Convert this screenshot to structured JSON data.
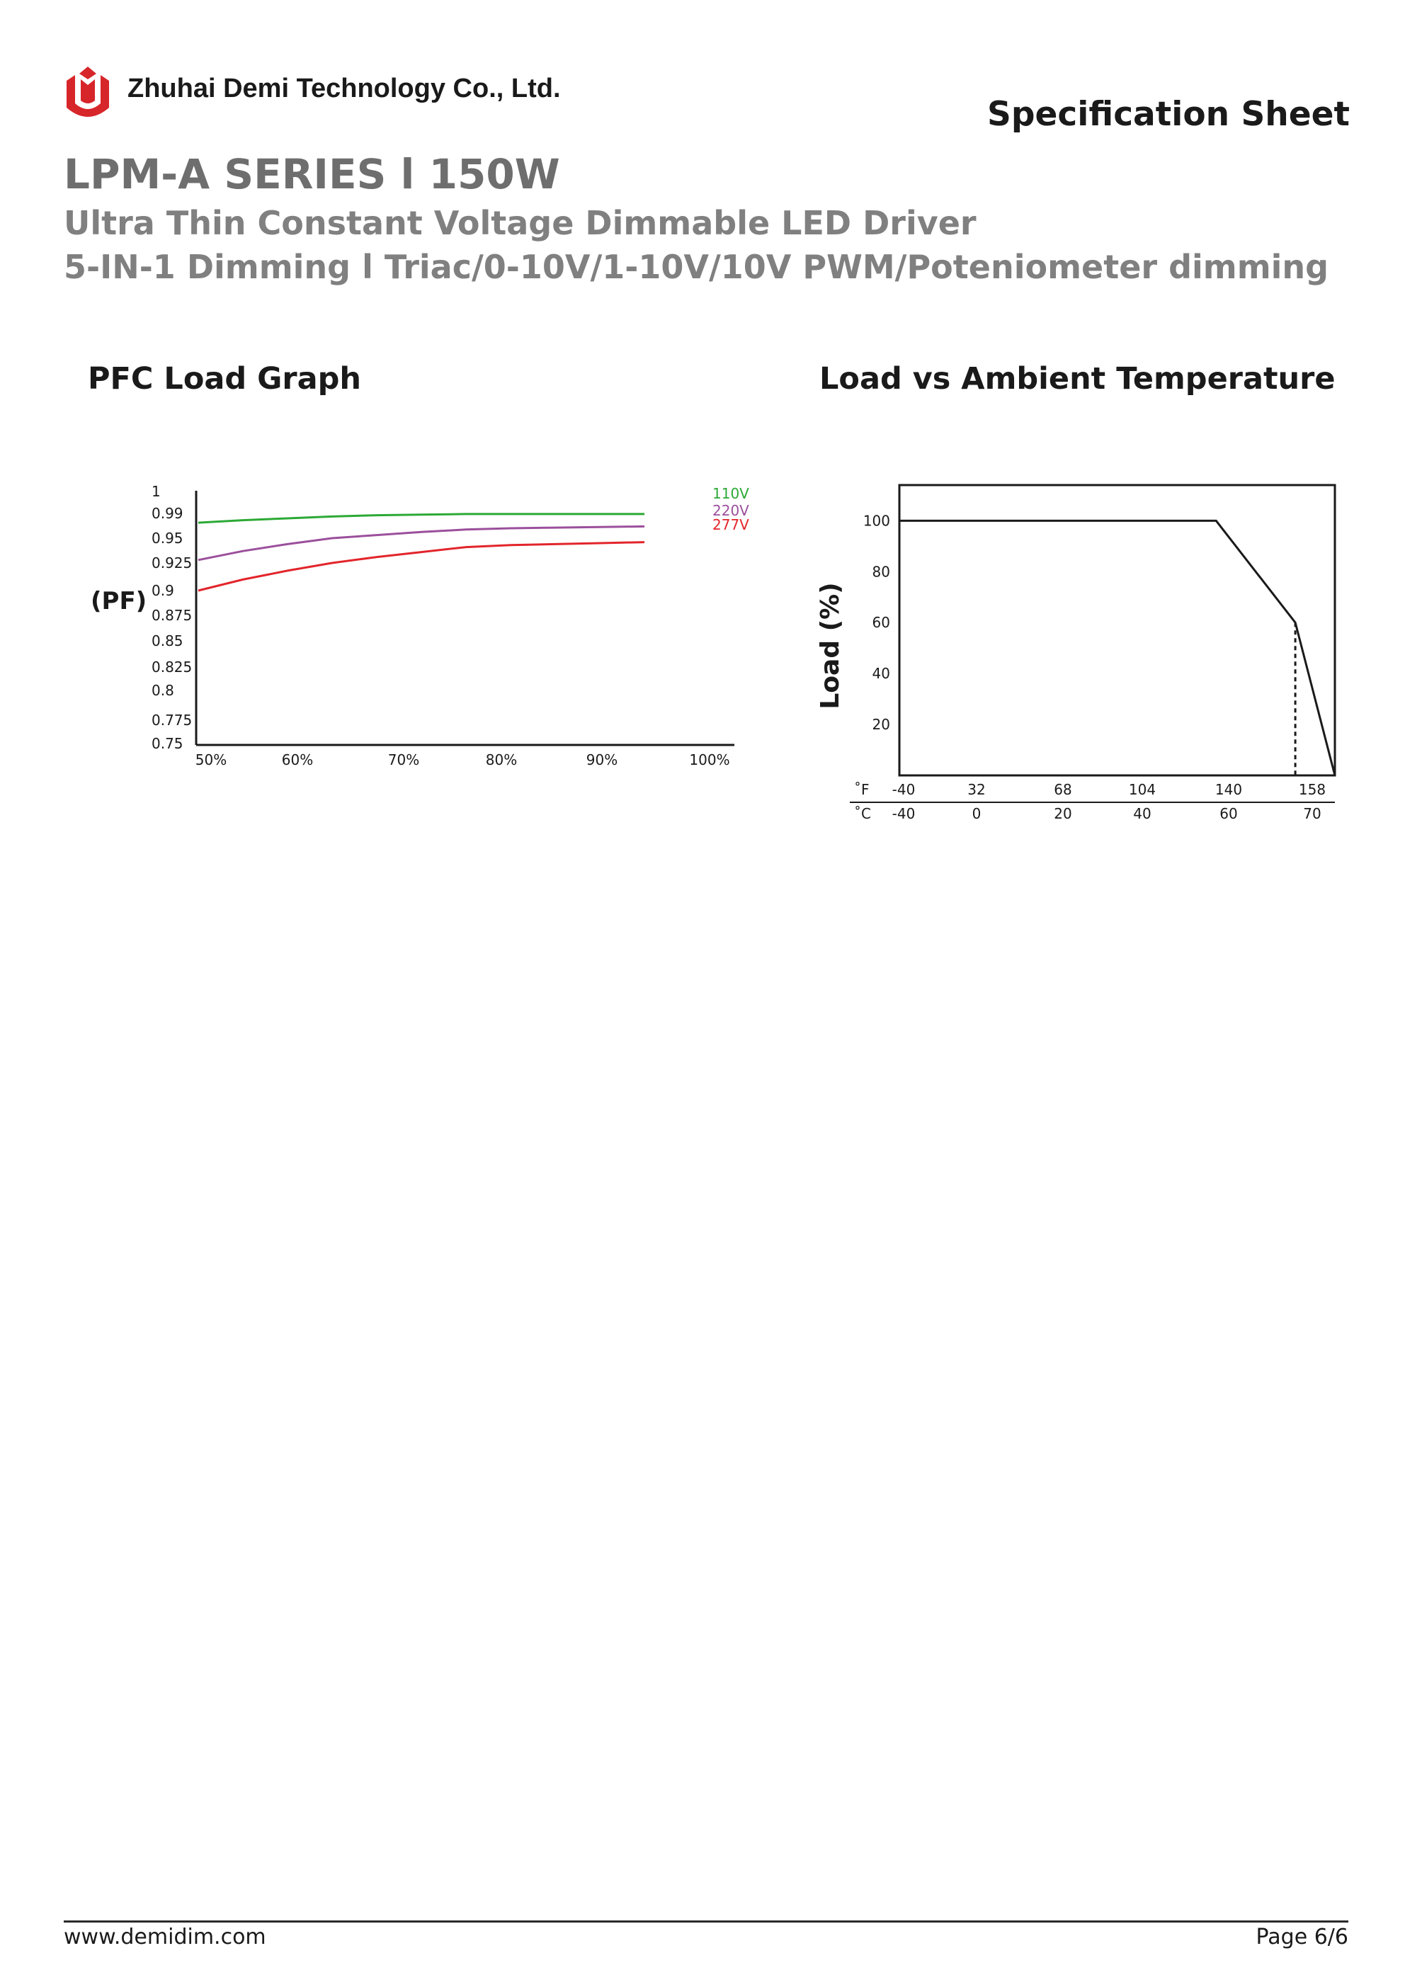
{
  "header": {
    "company": "Zhuhai Demi Technology Co., Ltd.",
    "doc_type": "Specification Sheet",
    "series": "LPM-A SERIES l 150W",
    "subtitle": "Ultra Thin Constant Voltage Dimmable LED Driver",
    "dimming": "5-IN-1 Dimming l  Triac/0-10V/1-10V/10V PWM/Poteniometer dimming"
  },
  "colors": {
    "logo_red": "#d7262a",
    "series_110v": "#2ca935",
    "series_220v": "#9b4f9c",
    "series_277v": "#e2252b"
  },
  "icons": {
    "logo": "demi-logo-icon"
  },
  "sections": {
    "pfc_title": "PFC Load Graph",
    "temp_title": "Load vs Ambient Temperature"
  },
  "chart_data": [
    {
      "type": "line",
      "title": "PFC Load Graph",
      "ylabel": "(PF)",
      "xlabel": "",
      "x": [
        50,
        55,
        60,
        65,
        70,
        75,
        80,
        85,
        90,
        95,
        100
      ],
      "x_ticks": [
        "50%",
        "60%",
        "70%",
        "80%",
        "90%",
        "100%"
      ],
      "y_ticks": [
        "1",
        "0.99",
        "0.95",
        "0.925",
        "0.9",
        "0.875",
        "0.85",
        "0.825",
        "0.8",
        "0.775",
        "0.75"
      ],
      "series": [
        {
          "name": "110V",
          "values": [
            0.975,
            0.979,
            0.982,
            0.985,
            0.987,
            0.988,
            0.989,
            0.989,
            0.989,
            0.989,
            0.989
          ]
        },
        {
          "name": "220V",
          "values": [
            0.928,
            0.937,
            0.944,
            0.95,
            0.955,
            0.96,
            0.964,
            0.966,
            0.967,
            0.968,
            0.969
          ]
        },
        {
          "name": "277V",
          "values": [
            0.9,
            0.91,
            0.918,
            0.925,
            0.931,
            0.936,
            0.941,
            0.943,
            0.944,
            0.945,
            0.946
          ]
        }
      ],
      "grid": false,
      "legend": "right"
    },
    {
      "type": "line",
      "title": "Load vs Ambient Temperature",
      "ylabel": "Load (%)",
      "y_ticks": [
        20,
        40,
        60,
        80,
        100
      ],
      "x_unit_f": "˚F",
      "x_unit_c": "˚C",
      "x_ticks_f": [
        "-40",
        "32",
        "68",
        "104",
        "140",
        "158"
      ],
      "x_ticks_c": [
        "-40",
        "0",
        "20",
        "40",
        "60",
        "70"
      ],
      "x": [
        -40,
        40,
        60,
        70
      ],
      "series": [
        {
          "values": [
            100,
            100,
            60,
            0
          ]
        }
      ],
      "marker_x": 60,
      "xlim": [
        -40,
        70
      ],
      "ylim": [
        0,
        114
      ],
      "grid": false
    }
  ],
  "footer": {
    "url": "www.demidim.com",
    "page": "Page 6/6"
  }
}
